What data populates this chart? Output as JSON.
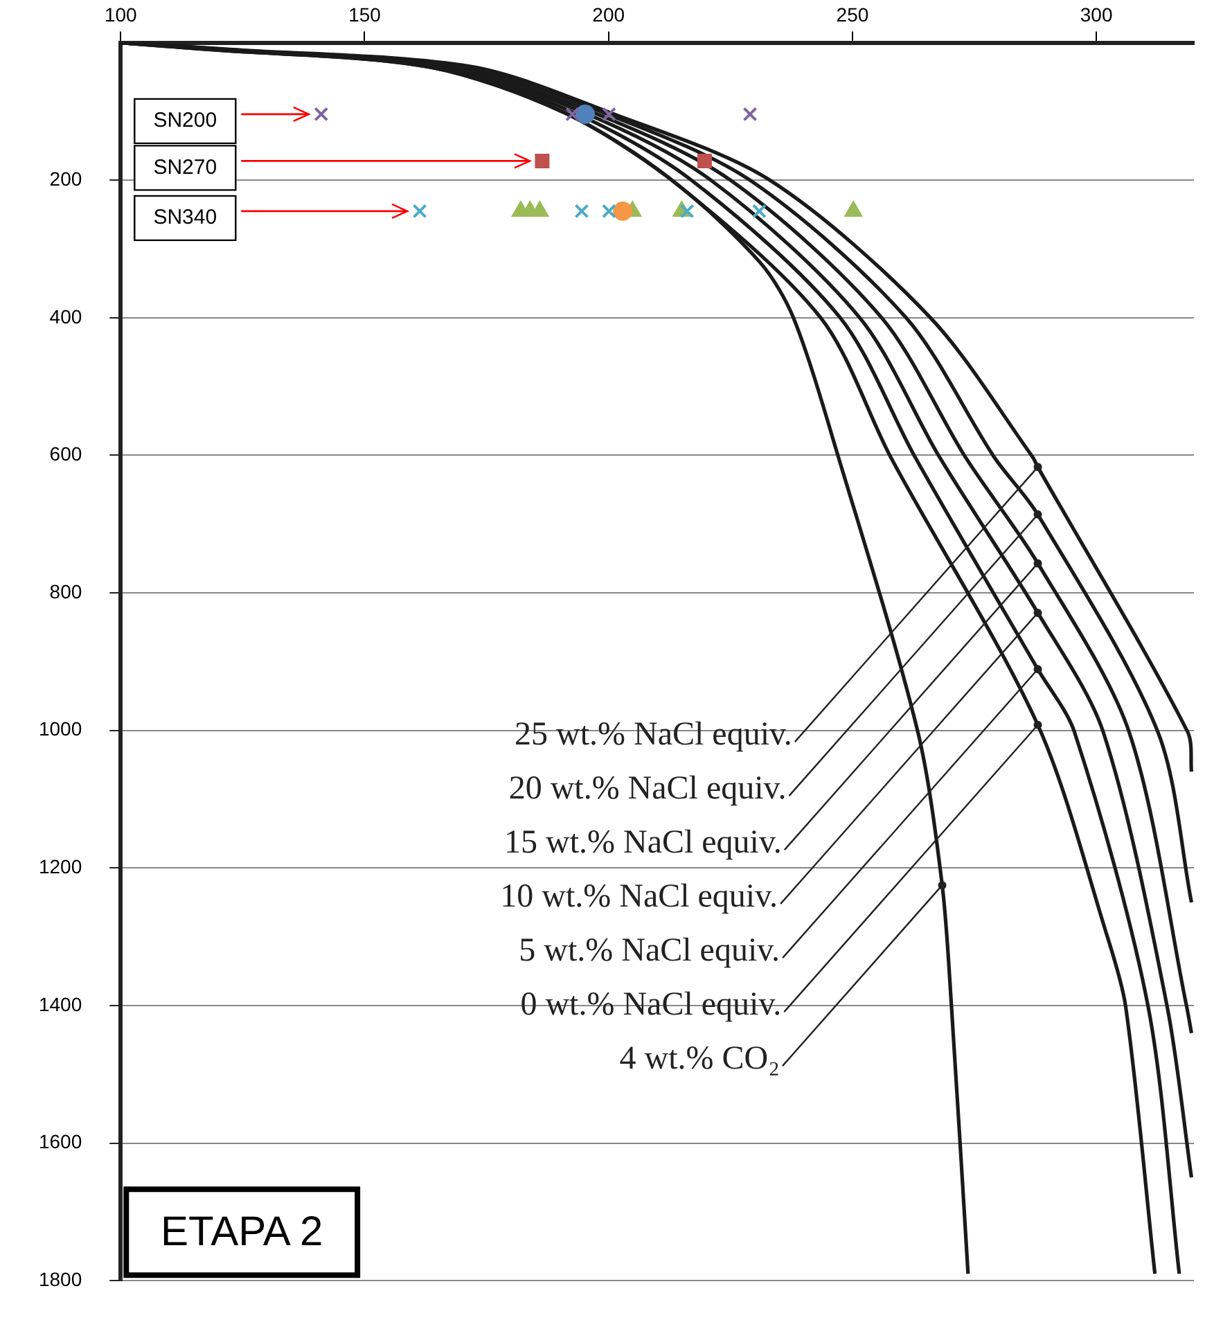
{
  "chart_data": {
    "type": "line",
    "title": "ETAPA 2",
    "xlim": [
      100,
      320
    ],
    "xticks": [
      100,
      150,
      200,
      250,
      300
    ],
    "ylim": [
      1800,
      0
    ],
    "yticks": [
      200,
      400,
      600,
      800,
      1000,
      1200,
      1400,
      1600,
      1800
    ],
    "grid": "y",
    "legend": false,
    "series": [
      {
        "type": "line",
        "color": "#1a1a1a",
        "marker": "none",
        "line_style": "solid",
        "x": [
          100,
          118,
          163,
          191,
          213,
          243.5,
          257.8,
          288,
          302,
          306,
          312
        ],
        "values": [
          0,
          10,
          35,
          102,
          200,
          400,
          602,
          992,
          1294,
          1401,
          1790
        ]
      },
      {
        "type": "line",
        "color": "#1a1a1a",
        "marker": "none",
        "line_style": "solid",
        "x": [
          100,
          119,
          164.5,
          193,
          217,
          247.5,
          262.8,
          288,
          295.5,
          310.6,
          317
        ],
        "values": [
          0,
          10,
          35,
          102,
          200,
          400,
          602,
          911,
          1002,
          1401,
          1790
        ]
      },
      {
        "type": "line",
        "color": "#1a1a1a",
        "marker": "none",
        "line_style": "solid",
        "x": [
          100,
          120,
          166,
          195,
          221,
          251.5,
          267.8,
          288,
          301.4,
          314.5,
          319.5
        ],
        "values": [
          0,
          10,
          35,
          102,
          200,
          400,
          602,
          829,
          1002,
          1401,
          1650
        ]
      },
      {
        "type": "line",
        "color": "#1a1a1a",
        "marker": "none",
        "line_style": "solid",
        "x": [
          100,
          121,
          168,
          197,
          225,
          256,
          273.1,
          288,
          306.7,
          318.5,
          319.5
        ],
        "values": [
          0,
          10,
          35,
          102,
          200,
          400,
          602,
          757,
          1002,
          1401,
          1440
        ]
      },
      {
        "type": "line",
        "color": "#1a1a1a",
        "marker": "none",
        "line_style": "solid",
        "x": [
          100,
          122,
          170,
          199,
          229,
          261,
          279,
          288,
          312.6,
          319.5
        ],
        "values": [
          0,
          10,
          35,
          102,
          200,
          400,
          602,
          686,
          1002,
          1250
        ]
      },
      {
        "type": "line",
        "color": "#1a1a1a",
        "marker": "none",
        "line_style": "solid",
        "x": [
          100,
          123,
          172,
          200.4,
          233.1,
          266,
          286.9,
          288,
          318.7,
          319.5
        ],
        "values": [
          0,
          10,
          35,
          102,
          200,
          400,
          602,
          617,
          1002,
          1060
        ]
      },
      {
        "type": "line",
        "color": "#1a1a1a",
        "marker": "none",
        "line_style": "solid",
        "x": [
          100,
          118,
          163,
          191,
          213,
          231,
          237.9,
          247.1,
          263.4,
          268.4,
          270.3,
          273.7
        ],
        "values": [
          0,
          10,
          35,
          102,
          200,
          319,
          400,
          602,
          1002,
          1225,
          1401,
          1790
        ]
      },
      {
        "type": "scatter",
        "color": "#8064a2",
        "marker": "cross",
        "x": [
          141.1,
          192.6,
          200.1,
          229
        ],
        "values": [
          104,
          104,
          104,
          104
        ]
      },
      {
        "type": "scatter",
        "color": "#4f81bd",
        "marker": "circle",
        "x": [
          195.2
        ],
        "values": [
          104
        ]
      },
      {
        "type": "scatter",
        "color": "#c0504d",
        "marker": "square",
        "x": [
          186.4,
          219.7
        ],
        "values": [
          172,
          172
        ]
      },
      {
        "type": "scatter",
        "color": "#4bacc6",
        "marker": "cross",
        "x": [
          161.3,
          194.5,
          200.1,
          216.1,
          230.9
        ],
        "values": [
          245,
          245,
          245,
          245,
          245
        ]
      },
      {
        "type": "scatter",
        "color": "#f79646",
        "marker": "circle",
        "x": [
          202.9
        ],
        "values": [
          245
        ]
      },
      {
        "type": "scatter",
        "color": "#9bbb59",
        "marker": "triangle",
        "x": [
          182,
          183.9,
          185.9,
          204.9,
          215,
          250.2
        ],
        "values": [
          245,
          245,
          245,
          245,
          245,
          245
        ]
      }
    ],
    "annotations": [
      {
        "text": "SN200",
        "x": 141.1,
        "y": 104
      },
      {
        "text": "SN270",
        "x": 186.4,
        "y": 172
      },
      {
        "text": "SN340",
        "x": 161.3,
        "y": 245
      },
      {
        "text": "25 wt.% NaCl equiv.",
        "x": 288,
        "y": 617
      },
      {
        "text": "20 wt.% NaCl equiv.",
        "x": 288,
        "y": 686
      },
      {
        "text": "15 wt.% NaCl equiv.",
        "x": 288,
        "y": 757
      },
      {
        "text": "10 wt.% NaCl equiv.",
        "x": 288,
        "y": 829
      },
      {
        "text": "5 wt.% NaCl equiv.",
        "x": 288,
        "y": 911
      },
      {
        "text": "0 wt.% NaCl equiv.",
        "x": 288,
        "y": 992
      },
      {
        "text": "4 wt.% CO₂",
        "x": 268.4,
        "y": 1225
      }
    ]
  }
}
